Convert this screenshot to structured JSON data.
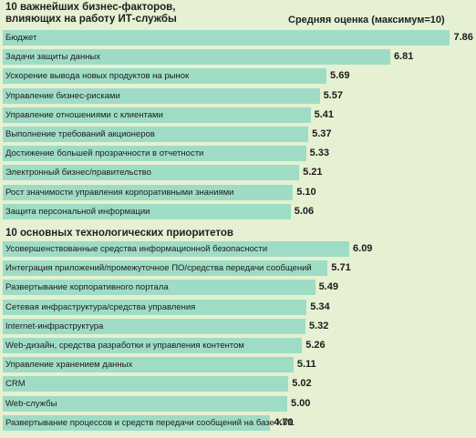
{
  "header": {
    "avg_label": "Средняя оценка (максимум=10)"
  },
  "chart_data": [
    {
      "type": "bar",
      "orientation": "horizontal",
      "title": "10 важнейших бизнес-факторов, влияющих на работу ИТ-службы",
      "title_lines": [
        "10 важнейших бизнес-факторов,",
        "влияющих на работу ИТ-службы"
      ],
      "xlim": [
        0,
        10
      ],
      "categories": [
        "Бюджет",
        "Задачи защиты данных",
        "Ускорение вывода новых продуктов на рынок",
        "Управление бизнес-рисками",
        "Управление отношениями с клиентами",
        "Выполнение требований акционеров",
        "Достижение большей прозрачности в отчетности",
        "Электронный бизнес/правительство",
        "Рост значимости управления корпоративными знаниями",
        "Защита персональной информации"
      ],
      "values": [
        7.86,
        6.81,
        5.69,
        5.57,
        5.41,
        5.37,
        5.33,
        5.21,
        5.1,
        5.06
      ],
      "value_labels": [
        "7.86",
        "6.81",
        "5.69",
        "5.57",
        "5.41",
        "5.37",
        "5.33",
        "5.21",
        "5.10",
        "5.06"
      ]
    },
    {
      "type": "bar",
      "orientation": "horizontal",
      "title": "10 основных технологических приоритетов",
      "title_lines": [
        "10 основных технологических приоритетов"
      ],
      "xlim": [
        0,
        10
      ],
      "categories": [
        "Усовершенствованные средства информационной безопасности",
        "Интеграция приложений/промежуточное ПО/средства передачи сообщений",
        "Развертывание корпоративного портала",
        "Сетевая инфраструктура/средства управления",
        "Internet-инфраструктура",
        "Web-дизайн, средства разработки и управления контентом",
        "Управление хранением данных",
        "CRM",
        "Web-службы",
        "Развертывание процессов и средств передачи сообщений на базе XML"
      ],
      "values": [
        6.09,
        5.71,
        5.49,
        5.34,
        5.32,
        5.26,
        5.11,
        5.02,
        5.0,
        4.7
      ],
      "value_labels": [
        "6.09",
        "5.71",
        "5.49",
        "5.34",
        "5.32",
        "5.26",
        "5.11",
        "5.02",
        "5.00",
        "4.70"
      ]
    }
  ]
}
